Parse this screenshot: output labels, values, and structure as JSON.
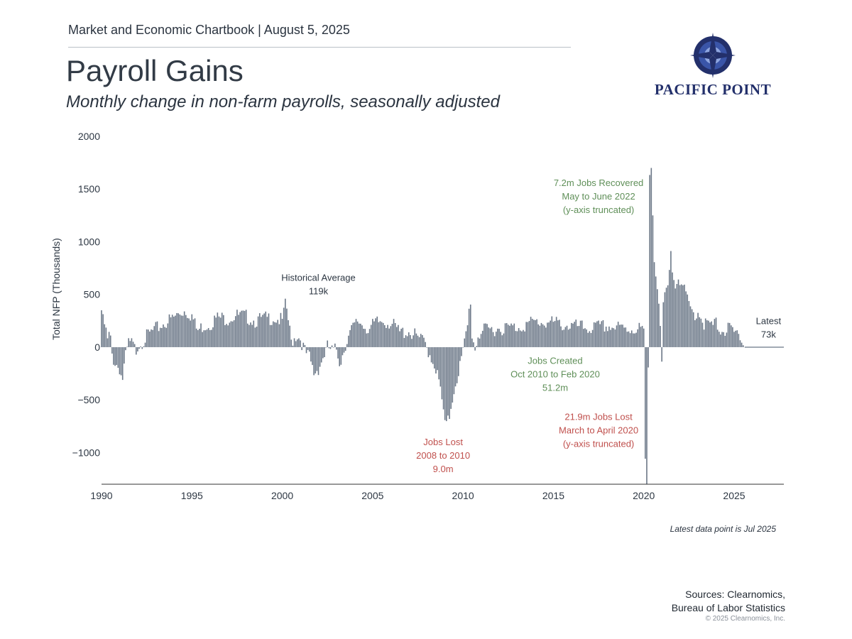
{
  "header": {
    "chartbook": "Market and Economic Chartbook | August 5, 2025",
    "title": "Payroll Gains",
    "subtitle": "Monthly change in non-farm payrolls, seasonally adjusted"
  },
  "logo": {
    "text": "PACIFIC POINT",
    "colors": [
      "#23306b",
      "#4a63b5",
      "#9fb3e6"
    ]
  },
  "footnote": "Latest data point is Jul 2025",
  "sources": {
    "line1": "Sources: Clearnomics,",
    "line2": "Bureau of Labor Statistics"
  },
  "copyright": "© 2025 Clearnomics, Inc.",
  "chart_data": {
    "type": "bar",
    "ylabel": "Total NFP (Thousands)",
    "ylim": [
      -1300,
      2000
    ],
    "xlim": [
      1990,
      2027.75
    ],
    "yticks": [
      2000,
      1500,
      1000,
      500,
      0,
      -500,
      -1000
    ],
    "ytick_labels": [
      "2000",
      "1500",
      "1000",
      "500",
      "0",
      "−500",
      "−1000"
    ],
    "xticks": [
      1990,
      1995,
      2000,
      2005,
      2010,
      2015,
      2020,
      2025
    ],
    "bar_color": "#6b7787",
    "x_start": "1990-01",
    "x_end": "2025-07",
    "anchors": [
      [
        1990.0,
        350
      ],
      [
        1990.08,
        250
      ],
      [
        1990.2,
        200
      ],
      [
        1990.35,
        40
      ],
      [
        1990.45,
        150
      ],
      [
        1990.6,
        -100
      ],
      [
        1990.8,
        -160
      ],
      [
        1991.0,
        -200
      ],
      [
        1991.15,
        -320
      ],
      [
        1991.3,
        -120
      ],
      [
        1991.5,
        40
      ],
      [
        1991.7,
        30
      ],
      [
        1991.9,
        -40
      ],
      [
        1992.0,
        20
      ],
      [
        1992.3,
        60
      ],
      [
        1992.6,
        120
      ],
      [
        1993.0,
        170
      ],
      [
        1993.5,
        230
      ],
      [
        1994.0,
        280
      ],
      [
        1994.3,
        320
      ],
      [
        1994.6,
        350
      ],
      [
        1995.0,
        300
      ],
      [
        1995.3,
        150
      ],
      [
        1995.6,
        200
      ],
      [
        1996.0,
        220
      ],
      [
        1996.4,
        280
      ],
      [
        1997.0,
        270
      ],
      [
        1997.4,
        300
      ],
      [
        1998.0,
        290
      ],
      [
        1998.5,
        250
      ],
      [
        1999.0,
        270
      ],
      [
        1999.5,
        280
      ],
      [
        2000.0,
        250
      ],
      [
        2000.2,
        420
      ],
      [
        2000.5,
        50
      ],
      [
        2000.8,
        120
      ],
      [
        2001.0,
        80
      ],
      [
        2001.3,
        -60
      ],
      [
        2001.5,
        -100
      ],
      [
        2001.75,
        -250
      ],
      [
        2002.0,
        -200
      ],
      [
        2002.5,
        0
      ],
      [
        2002.8,
        -40
      ],
      [
        2003.0,
        -20
      ],
      [
        2003.2,
        -150
      ],
      [
        2003.5,
        30
      ],
      [
        2003.8,
        150
      ],
      [
        2004.2,
        250
      ],
      [
        2004.8,
        170
      ],
      [
        2005.2,
        230
      ],
      [
        2005.6,
        250
      ],
      [
        2006.0,
        230
      ],
      [
        2006.5,
        140
      ],
      [
        2007.0,
        150
      ],
      [
        2007.5,
        90
      ],
      [
        2007.9,
        40
      ],
      [
        2008.0,
        0
      ],
      [
        2008.2,
        -80
      ],
      [
        2008.5,
        -200
      ],
      [
        2008.8,
        -450
      ],
      [
        2009.0,
        -750
      ],
      [
        2009.2,
        -700
      ],
      [
        2009.5,
        -400
      ],
      [
        2009.8,
        -200
      ],
      [
        2010.0,
        -50
      ],
      [
        2010.3,
        250
      ],
      [
        2010.4,
        520
      ],
      [
        2010.5,
        100
      ],
      [
        2010.7,
        -20
      ],
      [
        2010.8,
        100
      ],
      [
        2011.0,
        150
      ],
      [
        2012.0,
        180
      ],
      [
        2013.0,
        190
      ],
      [
        2014.0,
        240
      ],
      [
        2015.0,
        230
      ],
      [
        2016.0,
        200
      ],
      [
        2017.0,
        180
      ],
      [
        2018.0,
        200
      ],
      [
        2019.0,
        170
      ],
      [
        2019.9,
        180
      ],
      [
        2020.0,
        150
      ],
      [
        2020.1,
        -1300
      ],
      [
        2020.2,
        -1300
      ],
      [
        2020.35,
        2000
      ],
      [
        2020.45,
        1550
      ],
      [
        2020.55,
        950
      ],
      [
        2020.65,
        700
      ],
      [
        2020.8,
        500
      ],
      [
        2020.9,
        250
      ],
      [
        2021.0,
        -200
      ],
      [
        2021.1,
        500
      ],
      [
        2021.3,
        500
      ],
      [
        2021.5,
        850
      ],
      [
        2021.7,
        600
      ],
      [
        2021.9,
        700
      ],
      [
        2022.2,
        550
      ],
      [
        2022.5,
        400
      ],
      [
        2022.8,
        300
      ],
      [
        2023.0,
        350
      ],
      [
        2023.3,
        230
      ],
      [
        2023.7,
        200
      ],
      [
        2024.0,
        220
      ],
      [
        2024.4,
        150
      ],
      [
        2024.8,
        180
      ],
      [
        2025.0,
        120
      ],
      [
        2025.3,
        150
      ],
      [
        2025.55,
        20
      ],
      [
        2025.6,
        73
      ]
    ],
    "annotations": [
      {
        "id": "avg",
        "lines": [
          "Historical Average",
          "119k"
        ],
        "x": 2002.0,
        "y": 630,
        "color": "#2d3743"
      },
      {
        "id": "recovered",
        "lines": [
          "7.2m Jobs Recovered",
          "May to June 2022",
          "(y-axis truncated)"
        ],
        "x": 2017.5,
        "y": 1530,
        "color": "#5f8f58"
      },
      {
        "id": "created",
        "lines": [
          "Jobs Created",
          "Oct 2010 to Feb 2020",
          "51.2m"
        ],
        "x": 2015.1,
        "y": -160,
        "color": "#5f8f58"
      },
      {
        "id": "lost-covid",
        "lines": [
          "21.9m Jobs Lost",
          "March to April 2020",
          "(y-axis truncated)"
        ],
        "x": 2017.5,
        "y": -690,
        "color": "#c0504d"
      },
      {
        "id": "lost-gfc",
        "lines": [
          "Jobs Lost",
          "2008 to 2010",
          "9.0m"
        ],
        "x": 2008.9,
        "y": -930,
        "color": "#c0504d"
      },
      {
        "id": "latest",
        "lines": [
          "Latest",
          "73k"
        ],
        "x": 2026.9,
        "y": 220,
        "color": "#2d3743"
      }
    ]
  }
}
